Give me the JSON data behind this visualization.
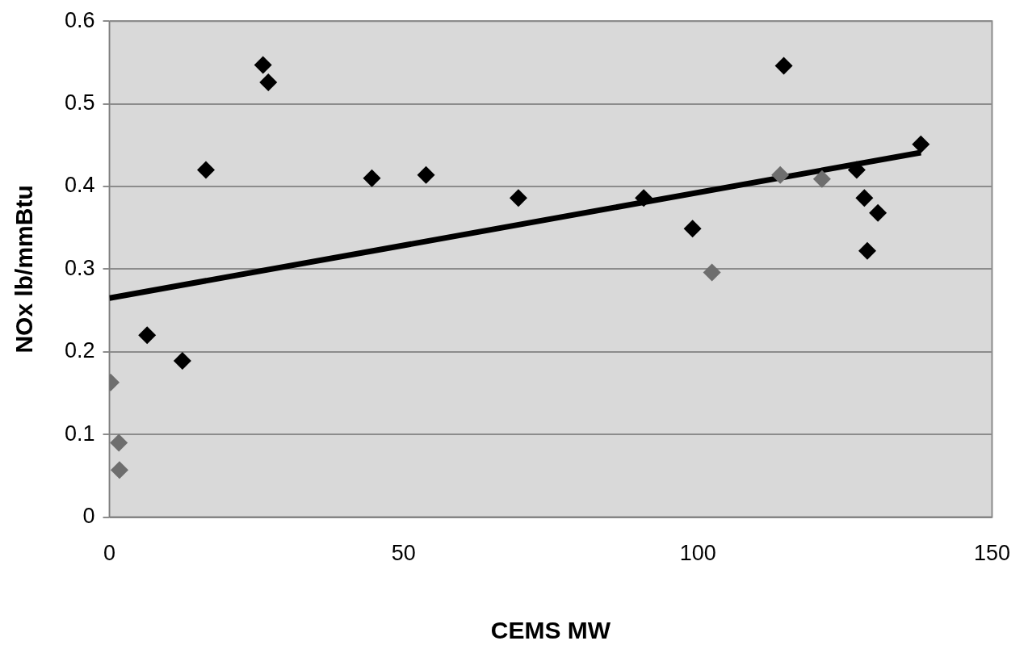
{
  "chart_data": {
    "type": "scatter",
    "xlabel": "CEMS MW",
    "ylabel": "NOx lb/mmBtu",
    "xlim": [
      0,
      150
    ],
    "xticks": [
      0,
      50,
      100,
      150
    ],
    "ylim": [
      0,
      0.6
    ],
    "yticks": [
      0,
      0.1,
      0.2,
      0.3,
      0.4,
      0.5,
      0.6
    ],
    "grid": "y",
    "legend": false,
    "series": [
      {
        "type": "scatter",
        "marker": "diamond",
        "x": [
          0.2,
          1.6,
          1.7,
          6.4,
          12.4,
          16.4,
          26.1,
          27.0,
          44.6,
          53.8,
          69.5,
          90.8,
          99.1,
          102.4,
          114.6,
          114.0,
          121.1,
          127.0,
          128.3,
          130.6,
          128.8,
          137.9
        ],
        "values": [
          0.163,
          0.09,
          0.057,
          0.22,
          0.189,
          0.42,
          0.547,
          0.526,
          0.41,
          0.414,
          0.386,
          0.386,
          0.349,
          0.296,
          0.546,
          0.414,
          0.409,
          0.42,
          0.386,
          0.368,
          0.322,
          0.451
        ],
        "colors": [
          "#6e6e6e",
          "#6e6e6e",
          "#6e6e6e",
          "#000000",
          "#000000",
          "#000000",
          "#000000",
          "#000000",
          "#000000",
          "#000000",
          "#000000",
          "#000000",
          "#000000",
          "#6e6e6e",
          "#000000",
          "#6e6e6e",
          "#6e6e6e",
          "#000000",
          "#000000",
          "#000000",
          "#000000",
          "#000000"
        ]
      },
      {
        "type": "line",
        "color": "#000000",
        "x": [
          0,
          137.9
        ],
        "values": [
          0.265,
          0.441
        ]
      }
    ]
  }
}
